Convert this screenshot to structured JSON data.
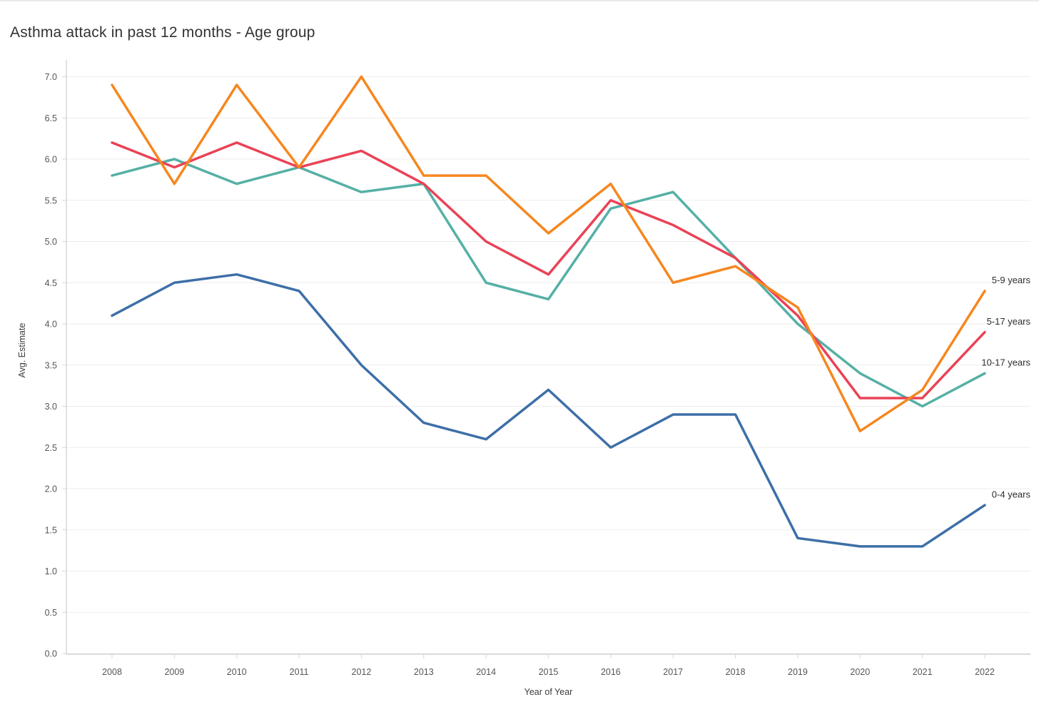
{
  "page": {
    "title": "Asthma attack in past 12 months - Age group"
  },
  "chart_data": {
    "type": "line",
    "title": "Asthma attack in past 12 months - Age group",
    "xlabel": "Year of Year",
    "ylabel": "Avg. Estimate",
    "x": [
      2008,
      2009,
      2010,
      2011,
      2012,
      2013,
      2014,
      2015,
      2016,
      2017,
      2018,
      2019,
      2020,
      2021,
      2022
    ],
    "ylim": [
      0.0,
      7.0
    ],
    "ytick_step": 0.5,
    "grid": "horizontal",
    "legend_position": "end-of-line-labels-right",
    "series": [
      {
        "name": "0-4 years",
        "color": "#3D6FA8",
        "values": [
          4.1,
          4.5,
          4.6,
          4.4,
          3.5,
          2.8,
          2.6,
          3.2,
          2.5,
          2.9,
          2.9,
          1.4,
          1.3,
          1.3,
          1.8
        ]
      },
      {
        "name": "10-17 years",
        "color": "#55B0A5",
        "values": [
          5.8,
          6.0,
          5.7,
          5.9,
          5.6,
          5.7,
          4.5,
          4.3,
          5.4,
          5.6,
          4.8,
          4.0,
          3.4,
          3.0,
          3.4
        ]
      },
      {
        "name": "5-17 years",
        "color": "#EA4256",
        "values": [
          6.2,
          5.9,
          6.2,
          5.9,
          6.1,
          5.7,
          5.0,
          4.6,
          5.5,
          5.2,
          4.8,
          4.1,
          3.1,
          3.1,
          3.9
        ]
      },
      {
        "name": "5-9 years",
        "color": "#F6871F",
        "values": [
          6.9,
          5.7,
          6.9,
          5.9,
          7.0,
          5.8,
          5.8,
          5.1,
          5.7,
          4.5,
          4.7,
          4.2,
          2.7,
          3.2,
          4.4
        ]
      }
    ],
    "axis_colors": {
      "grid_line": "#ededed",
      "axis_line": "#d4d4d4",
      "tick_mark": "#d7d7d7",
      "tick_label": "#565656",
      "series_label": "#2e2e2e"
    }
  }
}
